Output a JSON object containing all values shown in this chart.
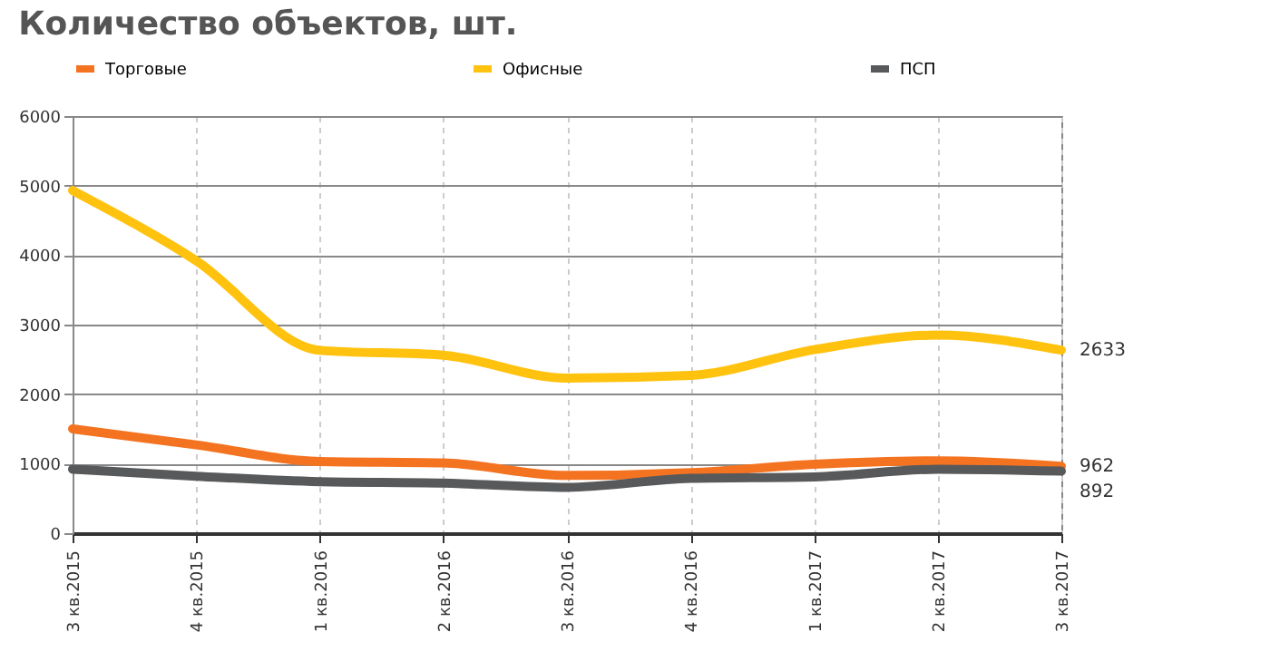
{
  "chart_data": {
    "type": "line",
    "title": "Количество объектов, шт.",
    "categories": [
      "3 кв.2015",
      "4 кв.2015",
      "1 кв.2016",
      "2 кв.2016",
      "3 кв.2016",
      "4 кв.2016",
      "1 кв.2017",
      "2 кв.2017",
      "3 кв.2017"
    ],
    "series": [
      {
        "name": "Торговые",
        "color": "#f47321",
        "values": [
          1500,
          1270,
          1030,
          1010,
          830,
          870,
          990,
          1040,
          962
        ],
        "value_labels": [
          null,
          null,
          null,
          null,
          null,
          null,
          null,
          null,
          "962"
        ]
      },
      {
        "name": "Офисные",
        "color": "#ffc20e",
        "values": [
          4930,
          3920,
          2630,
          2560,
          2230,
          2270,
          2640,
          2850,
          2633
        ],
        "value_labels": [
          null,
          null,
          null,
          null,
          null,
          null,
          null,
          null,
          "2633"
        ]
      },
      {
        "name": "ПСП",
        "color": "#58595b",
        "values": [
          920,
          820,
          740,
          720,
          660,
          790,
          810,
          920,
          892
        ],
        "value_labels": [
          null,
          null,
          null,
          null,
          null,
          null,
          null,
          null,
          "892"
        ]
      }
    ],
    "ylim": [
      0,
      6000
    ],
    "yticks": [
      0,
      1000,
      2000,
      3000,
      4000,
      5000,
      6000
    ],
    "grid": true,
    "legend": "top",
    "marker": "none",
    "line_style": "solid"
  }
}
